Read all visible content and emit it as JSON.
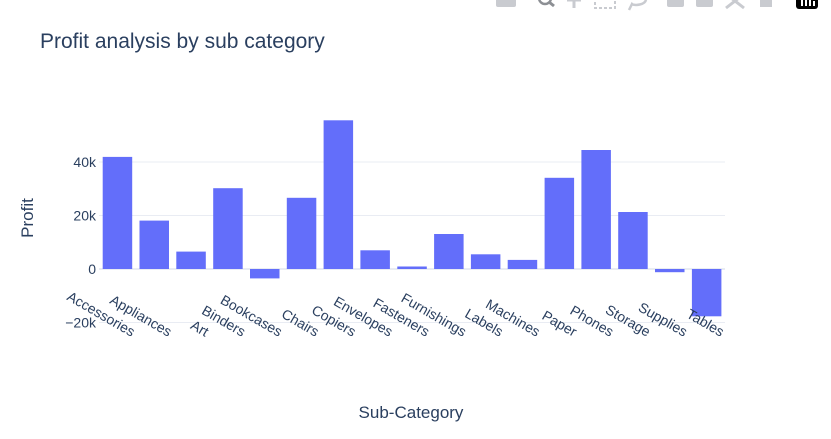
{
  "colors": {
    "bar": "#636efa",
    "text": "#2a3f5f",
    "grid": "#e9ecf3",
    "modebar": "#c9cbd0",
    "logo": "#000000"
  },
  "modebar": {
    "icons": [
      "camera-icon",
      "zoom-icon",
      "pan-icon",
      "box-select-icon",
      "lasso-select-icon",
      "zoom-in-icon",
      "zoom-out-icon",
      "autoscale-icon",
      "reset-axes-icon",
      "plotly-logo-icon"
    ]
  },
  "chart_data": {
    "type": "bar",
    "title": "Profit analysis by sub category",
    "xlabel": "Sub-Category",
    "ylabel": "Profit",
    "categories": [
      "Accessories",
      "Appliances",
      "Art",
      "Binders",
      "Bookcases",
      "Chairs",
      "Copiers",
      "Envelopes",
      "Fasteners",
      "Furnishings",
      "Labels",
      "Machines",
      "Paper",
      "Phones",
      "Storage",
      "Supplies",
      "Tables"
    ],
    "values": [
      41900,
      18100,
      6500,
      30200,
      -3500,
      26600,
      55600,
      7000,
      950,
      13100,
      5500,
      3400,
      34100,
      44500,
      21300,
      -1200,
      -17700
    ],
    "ylim": [
      -20000,
      60000
    ],
    "yticks": [
      -20000,
      0,
      20000,
      40000
    ],
    "ytick_labels": [
      "−20k",
      "0",
      "20k",
      "40k"
    ],
    "grid": true,
    "legend": "none"
  }
}
